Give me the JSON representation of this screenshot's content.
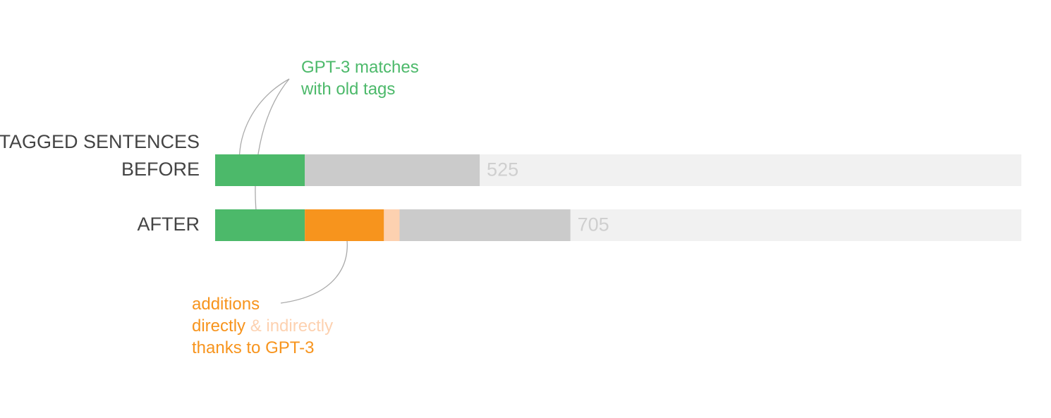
{
  "chart_data": {
    "type": "stacked-bar-horizontal",
    "ylabel": "TAGGED SENTENCES",
    "categories": [
      "BEFORE",
      "AFTER"
    ],
    "series": [
      {
        "color": "#4cb96a",
        "values": [
          178,
          178
        ]
      },
      {
        "color": "#f7941d",
        "values": [
          0,
          157
        ]
      },
      {
        "color": "#fdd1b0",
        "values": [
          0,
          31
        ]
      },
      {
        "color": "#cbcbcb",
        "values": [
          347,
          339
        ]
      }
    ],
    "totals": [
      525,
      705
    ],
    "xlim": [
      0,
      1600
    ],
    "track_color": "#f1f1f1",
    "annotations": [
      [
        {
          "text": "GPT-3 matches",
          "color": "#4cb96a"
        }
      ],
      [
        {
          "text": "with old tags",
          "color": "#4cb96a"
        }
      ],
      [
        {
          "text": "additions",
          "color": "#f7941d"
        }
      ],
      [
        {
          "text": "directly",
          "color": "#f7941d"
        },
        {
          "text": " & indirectly",
          "color": "#fdd1b0"
        }
      ],
      [
        {
          "text": "thanks to GPT-3",
          "color": "#f7941d"
        }
      ]
    ]
  }
}
